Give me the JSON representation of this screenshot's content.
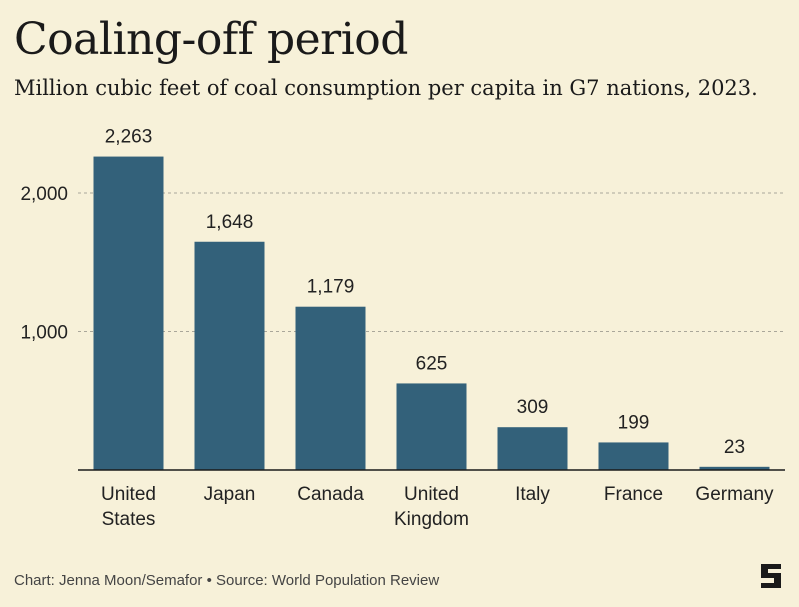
{
  "title": "Coaling-off period",
  "subtitle": "Million cubic feet of coal consumption per capita in G7 nations, 2023.",
  "footer": {
    "credit": "Chart: Jenna Moon/Semafor • Source: World Population Review"
  },
  "colors": {
    "background": "#f7f1d9",
    "bar": "#33617a",
    "gridline": "#aaa79a",
    "axis": "#1a1a1a"
  },
  "chart_data": {
    "type": "bar",
    "title": "Coaling-off period",
    "subtitle": "Million cubic feet of coal consumption per capita in G7 nations, 2023.",
    "categories": [
      [
        "United",
        "States"
      ],
      [
        "Japan"
      ],
      [
        "Canada"
      ],
      [
        "United",
        "Kingdom"
      ],
      [
        "Italy"
      ],
      [
        "France"
      ],
      [
        "Germany"
      ]
    ],
    "values": [
      2263,
      1648,
      1179,
      625,
      309,
      199,
      23
    ],
    "value_labels": [
      "2,263",
      "1,648",
      "1,179",
      "625",
      "309",
      "199",
      "23"
    ],
    "yticks": [
      1000,
      2000
    ],
    "ytick_labels": [
      "1,000",
      "2,000"
    ],
    "ylim": [
      0,
      2500
    ],
    "xlabel": "",
    "ylabel": "",
    "grid": true,
    "legend": "none"
  }
}
